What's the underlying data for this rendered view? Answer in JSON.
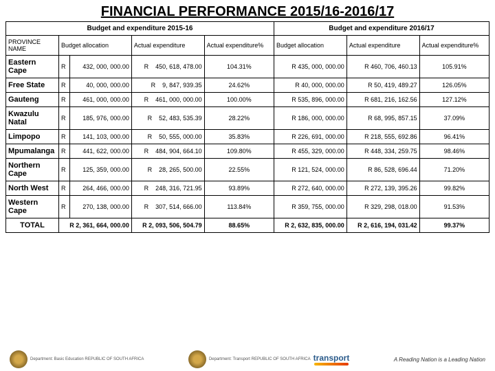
{
  "title": "FINANCIAL PERFORMANCE 2015/16-2016/17",
  "headers": {
    "period1": "Budget and expenditure 2015-16",
    "period2": "Budget and expenditure 2016/17",
    "province": "PROVINCE NAME",
    "ba": "Budget allocation",
    "ae": "Actual expenditure",
    "aep": "Actual expenditure%"
  },
  "rows": [
    {
      "name": "Eastern Cape",
      "ba1": "432, 000, 000.00",
      "ae1": "450, 618, 478.00",
      "pct1": "104.31%",
      "ba2": "R 435, 000, 000.00",
      "ae2": "R 460, 706, 460.13",
      "pct2": "105.91%"
    },
    {
      "name": "Free State",
      "ba1": "40, 000, 000.00",
      "ae1": "9, 847, 939.35",
      "pct1": "24.62%",
      "ba2": "R 40, 000, 000.00",
      "ae2": "R 50, 419, 489.27",
      "pct2": "126.05%"
    },
    {
      "name": "Gauteng",
      "ba1": "461, 000, 000.00",
      "ae1": "461, 000, 000.00",
      "pct1": "100.00%",
      "ba2": "R 535, 896, 000.00",
      "ae2": "R 681, 216, 162.56",
      "pct2": "127.12%"
    },
    {
      "name": "Kwazulu Natal",
      "ba1": "185, 976, 000.00",
      "ae1": "52, 483, 535.39",
      "pct1": "28.22%",
      "ba2": "R 186, 000, 000.00",
      "ae2": "R 68, 995, 857.15",
      "pct2": "37.09%"
    },
    {
      "name": "Limpopo",
      "ba1": "141, 103, 000.00",
      "ae1": "50, 555, 000.00",
      "pct1": "35.83%",
      "ba2": "R 226, 691, 000.00",
      "ae2": "R 218, 555, 692.86",
      "pct2": "96.41%"
    },
    {
      "name": "Mpumalanga",
      "ba1": "441, 622, 000.00",
      "ae1": "484, 904, 664.10",
      "pct1": "109.80%",
      "ba2": "R 455, 329, 000.00",
      "ae2": "R 448, 334, 259.75",
      "pct2": "98.46%"
    },
    {
      "name": "Northern Cape",
      "ba1": "125, 359, 000.00",
      "ae1": "28, 265, 500.00",
      "pct1": "22.55%",
      "ba2": "R 121, 524, 000.00",
      "ae2": "R 86, 528, 696.44",
      "pct2": "71.20%"
    },
    {
      "name": "North West",
      "ba1": "264, 466, 000.00",
      "ae1": "248, 316, 721.95",
      "pct1": "93.89%",
      "ba2": "R 272, 640, 000.00",
      "ae2": "R 272, 139, 395.26",
      "pct2": "99.82%"
    },
    {
      "name": "Western Cape",
      "ba1": "270, 138, 000.00",
      "ae1": "307, 514, 666.00",
      "pct1": "113.84%",
      "ba2": "R 359, 755, 000.00",
      "ae2": "R 329, 298, 018.00",
      "pct2": "91.53%"
    }
  ],
  "total": {
    "name": "TOTAL",
    "ba1": "R  2, 361, 664, 000.00",
    "ae1": "R  2, 093, 506, 504.79",
    "pct1": "88.65%",
    "ba2": "R 2, 632, 835, 000.00",
    "ae2": "R 2, 616, 194, 031.42",
    "pct2": "99.37%"
  },
  "footer": {
    "dbe": "Department:\nBasic Education\nREPUBLIC OF SOUTH AFRICA",
    "dot": "Department:\nTransport\nREPUBLIC OF SOUTH AFRICA",
    "transport": "transport",
    "reading": "A Reading Nation is a Leading Nation"
  },
  "style": {
    "title_fontsize": 20,
    "table_fontsize": 9,
    "border_color": "#000000",
    "background": "#ffffff"
  }
}
